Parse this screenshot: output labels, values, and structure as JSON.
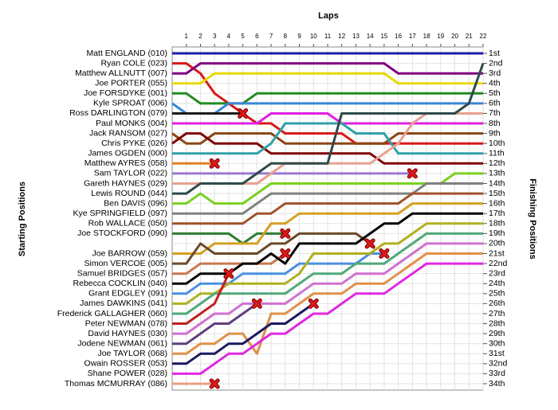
{
  "chart_data": {
    "type": "lapchart",
    "x_label": "Laps",
    "y_label": "Starting Positions",
    "y2_label": "Finishing Positions",
    "x": [
      0,
      1,
      2,
      3,
      4,
      5,
      6,
      7,
      8,
      9,
      10,
      11,
      12,
      13,
      14,
      15,
      16,
      17,
      18,
      19,
      20,
      21,
      22
    ],
    "xlim": [
      0,
      22
    ],
    "xticks": [
      1,
      2,
      3,
      4,
      5,
      6,
      7,
      8,
      9,
      10,
      11,
      12,
      13,
      14,
      15,
      16,
      17,
      18,
      19,
      20,
      21,
      22
    ],
    "ylim": [
      1,
      34
    ],
    "yticks": [
      {
        "value": 1,
        "label": "1st"
      },
      {
        "value": 2,
        "label": "2nd"
      },
      {
        "value": 3,
        "label": "3rd"
      },
      {
        "value": 4,
        "label": "4th"
      },
      {
        "value": 5,
        "label": "5th"
      },
      {
        "value": 6,
        "label": "6th"
      },
      {
        "value": 7,
        "label": "7th"
      },
      {
        "value": 8,
        "label": "8th"
      },
      {
        "value": 9,
        "label": "9th"
      },
      {
        "value": 10,
        "label": "10th"
      },
      {
        "value": 11,
        "label": "11th"
      },
      {
        "value": 12,
        "label": "12th"
      },
      {
        "value": 13,
        "label": "13th"
      },
      {
        "value": 14,
        "label": "14th"
      },
      {
        "value": 15,
        "label": "15th"
      },
      {
        "value": 16,
        "label": "16th"
      },
      {
        "value": 17,
        "label": "17th"
      },
      {
        "value": 18,
        "label": "18th"
      },
      {
        "value": 19,
        "label": "19th"
      },
      {
        "value": 20,
        "label": "20th"
      },
      {
        "value": 21,
        "label": "21st"
      },
      {
        "value": 22,
        "label": "22nd"
      },
      {
        "value": 23,
        "label": "23rd"
      },
      {
        "value": 24,
        "label": "24th"
      },
      {
        "value": 25,
        "label": "25th"
      },
      {
        "value": 26,
        "label": "26th"
      },
      {
        "value": 27,
        "label": "27th"
      },
      {
        "value": 28,
        "label": "28th"
      },
      {
        "value": 29,
        "label": "29th"
      },
      {
        "value": 30,
        "label": "30th"
      },
      {
        "value": 31,
        "label": "31st"
      },
      {
        "value": 32,
        "label": "32nd"
      },
      {
        "value": 33,
        "label": "33rd"
      },
      {
        "value": 34,
        "label": "34th"
      }
    ],
    "grid": true,
    "series": [
      {
        "name": "Matt ENGLAND (010)",
        "color": "#1c1ca8",
        "values": [
          1,
          1,
          1,
          1,
          1,
          1,
          1,
          1,
          1,
          1,
          1,
          1,
          1,
          1,
          1,
          1,
          1,
          1,
          1,
          1,
          1,
          1,
          1
        ]
      },
      {
        "name": "Ryan COLE (023)",
        "color": "#d81818",
        "values": [
          2,
          2,
          3,
          5,
          6,
          7,
          8,
          8,
          9,
          9,
          9,
          9,
          9,
          10,
          10,
          10,
          10,
          10,
          10,
          10,
          10,
          10,
          10
        ]
      },
      {
        "name": "Matthew ALLNUTT (007)",
        "color": "#800080",
        "values": [
          3,
          3,
          2,
          2,
          2,
          2,
          2,
          2,
          2,
          2,
          2,
          2,
          2,
          2,
          2,
          2,
          3,
          3,
          3,
          3,
          3,
          3,
          3
        ]
      },
      {
        "name": "Joe PORTER (055)",
        "color": "#e8d800",
        "values": [
          4,
          4,
          4,
          3,
          3,
          3,
          3,
          3,
          3,
          3,
          3,
          3,
          3,
          3,
          3,
          3,
          4,
          4,
          4,
          4,
          4,
          4,
          4
        ]
      },
      {
        "name": "Joe FORSDYKE (001)",
        "color": "#228b22",
        "values": [
          5,
          5,
          6,
          6,
          6,
          6,
          5,
          5,
          5,
          5,
          5,
          5,
          5,
          5,
          5,
          5,
          5,
          5,
          5,
          5,
          5,
          5,
          5
        ]
      },
      {
        "name": "Kyle SPROAT (006)",
        "color": "#3a86d8",
        "values": [
          6,
          7,
          7,
          7,
          6,
          6,
          6,
          6,
          6,
          6,
          6,
          6,
          6,
          6,
          6,
          6,
          6,
          6,
          6,
          6,
          6,
          6,
          6
        ]
      },
      {
        "name": "Ross DARLINGTON (079)",
        "color": "#1a1a1a",
        "values": [
          7,
          7,
          7,
          7,
          7,
          7,
          null,
          null,
          null,
          null,
          null,
          null,
          null,
          null,
          null,
          null,
          null,
          null,
          null,
          null,
          null,
          null,
          null
        ]
      },
      {
        "name": "Paul MONKS (004)",
        "color": "#e020e0",
        "values": [
          8,
          8,
          8,
          8,
          8,
          8,
          8,
          7,
          7,
          7,
          7,
          7,
          8,
          8,
          8,
          8,
          8,
          8,
          8,
          8,
          8,
          8,
          8
        ]
      },
      {
        "name": "Jack RANSOM (027)",
        "color": "#8b4513",
        "values": [
          9,
          10,
          10,
          9,
          9,
          9,
          9,
          9,
          10,
          10,
          10,
          10,
          10,
          10,
          10,
          10,
          9,
          9,
          9,
          9,
          9,
          9,
          9
        ]
      },
      {
        "name": "Chris PYKE (026)",
        "color": "#800000",
        "values": [
          10,
          9,
          9,
          10,
          10,
          10,
          10,
          11,
          11,
          11,
          11,
          11,
          11,
          11,
          11,
          12,
          12,
          12,
          12,
          12,
          12,
          12,
          12
        ]
      },
      {
        "name": "James OGDEN (000)",
        "color": "#30a0a8",
        "values": [
          11,
          11,
          11,
          11,
          11,
          11,
          11,
          10,
          8,
          8,
          8,
          8,
          8,
          9,
          9,
          9,
          11,
          11,
          11,
          11,
          11,
          11,
          11
        ]
      },
      {
        "name": "Matthew AYRES (058)",
        "color": "#e08020",
        "values": [
          12,
          12,
          12,
          12,
          null,
          null,
          null,
          null,
          null,
          null,
          null,
          null,
          null,
          null,
          null,
          null,
          null,
          null,
          null,
          null,
          null,
          null,
          null
        ]
      },
      {
        "name": "Sam TAYLOR (022)",
        "color": "#9a78d0",
        "values": [
          13,
          13,
          13,
          13,
          13,
          13,
          13,
          13,
          13,
          13,
          13,
          13,
          13,
          13,
          13,
          13,
          13,
          13,
          null,
          null,
          null,
          null,
          null
        ]
      },
      {
        "name": "Gareth HAYNES (029)",
        "color": "#e8a090",
        "values": [
          14,
          14,
          14,
          14,
          14,
          14,
          14,
          13,
          12,
          12,
          12,
          12,
          12,
          12,
          12,
          11,
          10,
          8,
          7,
          7,
          7,
          7,
          7
        ]
      },
      {
        "name": "Lewis ROUND (044)",
        "color": "#2e4a4a",
        "values": [
          15,
          15,
          14,
          14,
          14,
          14,
          13,
          12,
          12,
          12,
          12,
          12,
          7,
          7,
          7,
          7,
          7,
          7,
          7,
          7,
          7,
          6,
          2
        ]
      },
      {
        "name": "Ben DAVIS (096)",
        "color": "#7ad020",
        "values": [
          16,
          16,
          15,
          16,
          16,
          16,
          15,
          14,
          14,
          14,
          14,
          14,
          14,
          14,
          14,
          14,
          14,
          14,
          14,
          14,
          13,
          13,
          13
        ]
      },
      {
        "name": "Kye SPRINGFIELD (097)",
        "color": "#808080",
        "values": [
          17,
          17,
          17,
          17,
          17,
          17,
          16,
          15,
          15,
          15,
          15,
          15,
          15,
          15,
          15,
          15,
          15,
          15,
          14,
          14,
          14,
          14,
          14
        ]
      },
      {
        "name": "Rob WALLACE (050)",
        "color": "#a0522d",
        "values": [
          18,
          18,
          18,
          18,
          18,
          18,
          17,
          17,
          16,
          16,
          16,
          16,
          16,
          16,
          16,
          16,
          16,
          15,
          15,
          15,
          15,
          15,
          15
        ]
      },
      {
        "name": "Joe STOCKFORD (090)",
        "color": "#2e7d32",
        "values": [
          19,
          19,
          19,
          19,
          19,
          20,
          19,
          19,
          19,
          null,
          null,
          null,
          null,
          null,
          null,
          null,
          null,
          null,
          null,
          null,
          null,
          null,
          null
        ]
      },
      {
        "name": "Joe BARROW (059)",
        "color": "#d4a020",
        "values": [
          21,
          21,
          21,
          20,
          20,
          20,
          20,
          18,
          18,
          17,
          17,
          17,
          17,
          17,
          17,
          17,
          17,
          16,
          16,
          16,
          16,
          16,
          16
        ]
      },
      {
        "name": "Simon VERCOE (005)",
        "color": "#6b4a2a",
        "values": [
          22,
          22,
          20,
          21,
          21,
          21,
          21,
          20,
          20,
          19,
          19,
          19,
          19,
          19,
          20,
          null,
          null,
          null,
          null,
          null,
          null,
          null,
          null
        ]
      },
      {
        "name": "Samuel BRIDGES (057)",
        "color": "#c87850",
        "values": [
          23,
          23,
          22,
          22,
          22,
          22,
          22,
          22,
          21,
          null,
          null,
          null,
          null,
          null,
          null,
          null,
          null,
          null,
          null,
          null,
          null,
          null,
          null
        ]
      },
      {
        "name": "Rebecca COCKLIN (040)",
        "color": "#000000",
        "values": [
          24,
          24,
          23,
          23,
          23,
          22,
          22,
          21,
          22,
          20,
          20,
          20,
          20,
          20,
          19,
          18,
          18,
          17,
          17,
          17,
          17,
          17,
          17
        ]
      },
      {
        "name": "Grant EDGLEY (091)",
        "color": "#4a90e0",
        "values": [
          25,
          25,
          24,
          24,
          24,
          23,
          23,
          23,
          23,
          22,
          22,
          22,
          22,
          22,
          21,
          21,
          null,
          null,
          null,
          null,
          null,
          null,
          null
        ]
      },
      {
        "name": "James DAWKINS (041)",
        "color": "#b0b020",
        "values": [
          26,
          26,
          25,
          25,
          24,
          24,
          24,
          24,
          24,
          23,
          21,
          21,
          21,
          21,
          21,
          20,
          20,
          19,
          18,
          18,
          18,
          18,
          18
        ]
      },
      {
        "name": "Frederick GALLAGHER (060)",
        "color": "#50a878",
        "values": [
          27,
          27,
          26,
          25,
          25,
          25,
          25,
          25,
          25,
          24,
          23,
          23,
          23,
          22,
          22,
          22,
          21,
          20,
          19,
          19,
          19,
          19,
          19
        ]
      },
      {
        "name": "Peter NEWMAN (078)",
        "color": "#c02020",
        "values": [
          28,
          28,
          27,
          26,
          23,
          null,
          null,
          null,
          null,
          null,
          null,
          null,
          null,
          null,
          null,
          null,
          null,
          null,
          null,
          null,
          null,
          null,
          null
        ]
      },
      {
        "name": "David HAYNES (030)",
        "color": "#d070d0",
        "values": [
          29,
          29,
          28,
          27,
          27,
          26,
          26,
          26,
          26,
          25,
          24,
          24,
          24,
          23,
          23,
          23,
          22,
          21,
          20,
          20,
          20,
          20,
          20
        ]
      },
      {
        "name": "Jodene NEWMAN (061)",
        "color": "#604080",
        "values": [
          30,
          30,
          29,
          28,
          28,
          27,
          26,
          null,
          null,
          null,
          null,
          null,
          null,
          null,
          null,
          null,
          null,
          null,
          null,
          null,
          null,
          null,
          null
        ]
      },
      {
        "name": "Joe TAYLOR (068)",
        "color": "#e09048",
        "values": [
          31,
          31,
          30,
          30,
          29,
          29,
          31,
          27,
          27,
          26,
          25,
          25,
          25,
          24,
          24,
          24,
          23,
          22,
          21,
          21,
          21,
          21,
          21
        ]
      },
      {
        "name": "Owain ROSSER (053)",
        "color": "#1a1a60",
        "values": [
          32,
          32,
          31,
          31,
          30,
          30,
          29,
          28,
          28,
          27,
          26,
          null,
          null,
          null,
          null,
          null,
          null,
          null,
          null,
          null,
          null,
          null,
          null
        ]
      },
      {
        "name": "Shane POWER (028)",
        "color": "#e028e0",
        "values": [
          33,
          33,
          33,
          32,
          31,
          31,
          30,
          29,
          29,
          28,
          27,
          27,
          26,
          25,
          25,
          25,
          24,
          23,
          22,
          22,
          22,
          22,
          22
        ]
      },
      {
        "name": "Thomas MCMURRAY (086)",
        "color": "#e8a080",
        "values": [
          34,
          34,
          34,
          34,
          null,
          null,
          null,
          null,
          null,
          null,
          null,
          null,
          null,
          null,
          null,
          null,
          null,
          null,
          null,
          null,
          null,
          null,
          null
        ]
      }
    ]
  }
}
